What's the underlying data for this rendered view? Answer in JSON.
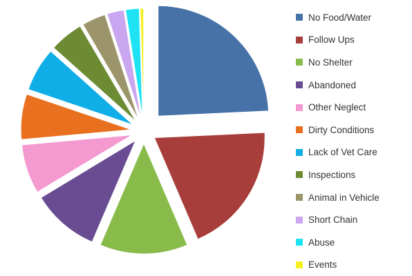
{
  "chart_data": {
    "type": "pie",
    "exploded": true,
    "legend_position": "right",
    "slices": [
      {
        "label": "No Food/Water",
        "value": 24.5,
        "color": "#4672a8"
      },
      {
        "label": "Follow Ups",
        "value": 19.5,
        "color": "#a83e3b"
      },
      {
        "label": "No Shelter",
        "value": 13.0,
        "color": "#88bb4a"
      },
      {
        "label": "Abandoned",
        "value": 10.0,
        "color": "#6a4c93"
      },
      {
        "label": "Other Neglect",
        "value": 7.3,
        "color": "#f49ad1"
      },
      {
        "label": "Dirty Conditions",
        "value": 6.7,
        "color": "#e8701e"
      },
      {
        "label": "Lack of Vet Care",
        "value": 6.5,
        "color": "#10aee6"
      },
      {
        "label": "Inspections",
        "value": 5.0,
        "color": "#6d8b33"
      },
      {
        "label": "Animal in Vehicle",
        "value": 3.5,
        "color": "#9c946a"
      },
      {
        "label": "Short Chain",
        "value": 2.5,
        "color": "#c9a6ef"
      },
      {
        "label": "Abuse",
        "value": 2.0,
        "color": "#1ee3f4"
      },
      {
        "label": "Events",
        "value": 0.5,
        "color": "#f5f01e"
      }
    ]
  }
}
